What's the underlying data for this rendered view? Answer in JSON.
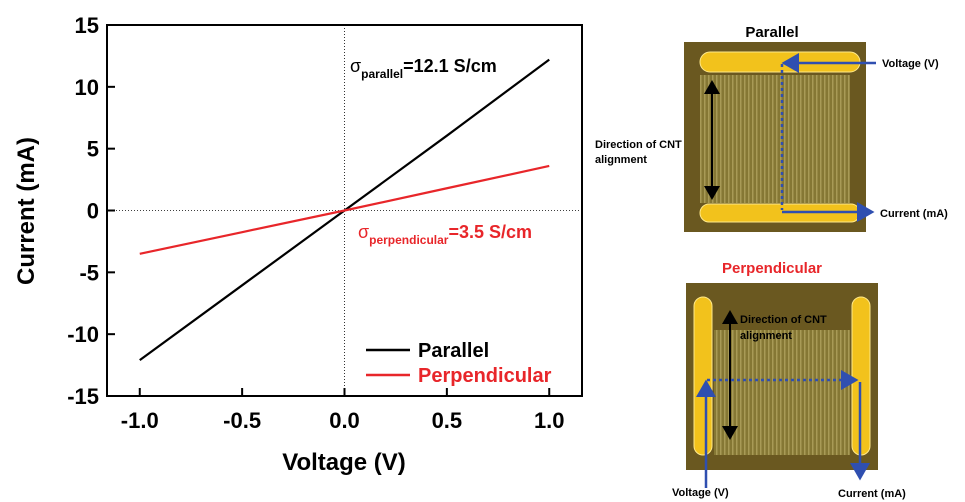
{
  "chart_data": {
    "type": "line",
    "xlabel": "Voltage (V)",
    "ylabel": "Current (mA)",
    "x": [
      -1,
      -0.5,
      0,
      0.5,
      1
    ],
    "series": [
      {
        "name": "Parallel",
        "color": "#000000",
        "values": [
          -12.1,
          -6.05,
          0,
          6.05,
          12.2
        ]
      },
      {
        "name": "Perpendicular",
        "color": "#e8262a",
        "values": [
          -3.5,
          -1.75,
          0,
          1.8,
          3.6
        ]
      }
    ],
    "xlim": [
      -1.16,
      1.16
    ],
    "ylim": [
      -15,
      15
    ],
    "xticks": [
      {
        "value": -1,
        "label": "-1.0"
      },
      -0.5,
      {
        "value": 0,
        "label": "0.0"
      },
      0.5,
      {
        "value": 1,
        "label": "1.0"
      }
    ],
    "yticks": [
      15,
      10,
      5,
      0,
      -5,
      -10,
      -15
    ],
    "zero_lines": true,
    "legend": "lower right",
    "annotations": [
      {
        "symbol": "σ",
        "subscript": "parallel",
        "text": "=12.1 S/cm",
        "color": "#000000"
      },
      {
        "symbol": "σ",
        "subscript": "perpendicular",
        "text": "=3.5 S/cm",
        "color": "#e8262a"
      }
    ]
  },
  "panels": [
    {
      "title": "Parallel",
      "voltage": "Voltage (V)",
      "current": "Current (mA)",
      "direction": [
        "Direction of CNT",
        "alignment"
      ]
    },
    {
      "title": "Perpendicular",
      "voltage": "Voltage (V)",
      "current": "Current (mA)",
      "direction": [
        "Direction of CNT",
        "alignment"
      ]
    }
  ]
}
